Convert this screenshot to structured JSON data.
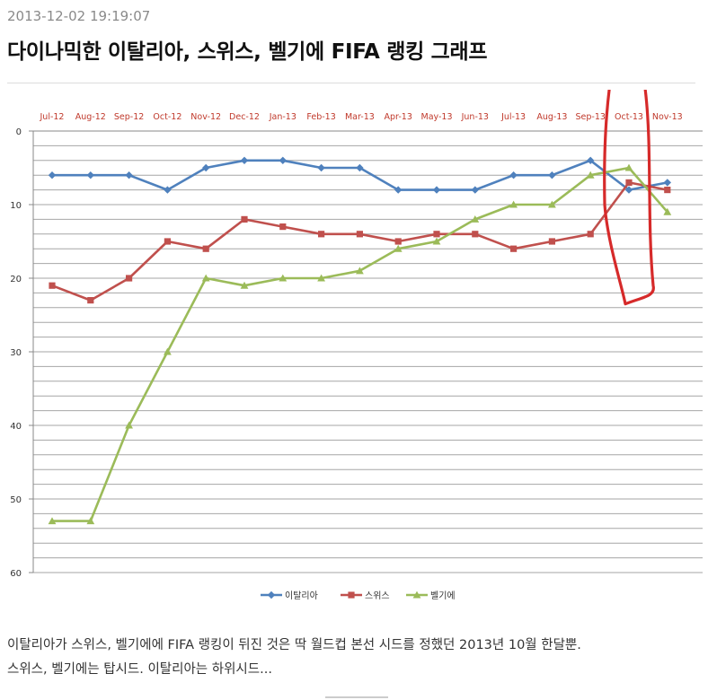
{
  "post": {
    "timestamp": "2013-12-02 19:19:07",
    "title": "다이나믹한 이탈리아, 스위스, 벨기에 FIFA 랭킹 그래프",
    "body_line1": "이탈리아가 스위스, 벨기에에 FIFA 랭킹이 뒤진 것은 딱 월드컵 본선 시드를 정했던 2013년 10월 한달뿐.",
    "body_line2": "스위스, 벨기에는 탑시드. 이탈리아는 하위시드..."
  },
  "colors": {
    "italy": "#4f81bd",
    "switzerland": "#c0504d",
    "belgium": "#9bbb59",
    "annotation": "#d62a2a",
    "axis_label": "#c0392b"
  },
  "chart_data": {
    "type": "line",
    "title": "",
    "xlabel": "",
    "ylabel": "",
    "categories": [
      "Jul-12",
      "Aug-12",
      "Sep-12",
      "Oct-12",
      "Nov-12",
      "Dec-12",
      "Jan-13",
      "Feb-13",
      "Mar-13",
      "Apr-13",
      "May-13",
      "Jun-13",
      "Jul-13",
      "Aug-13",
      "Sep-13",
      "Oct-13",
      "Nov-13"
    ],
    "ylim": [
      0,
      60
    ],
    "y_reversed": true,
    "y_ticks": [
      0,
      10,
      20,
      30,
      40,
      50,
      60
    ],
    "x_axis_position": "top",
    "grid": true,
    "legend_position": "bottom",
    "series": [
      {
        "name": "이탈리아",
        "marker": "diamond",
        "color": "#4f81bd",
        "values": [
          6,
          6,
          6,
          8,
          5,
          4,
          4,
          5,
          5,
          8,
          8,
          8,
          6,
          6,
          4,
          8,
          7
        ]
      },
      {
        "name": "스위스",
        "marker": "square",
        "color": "#c0504d",
        "values": [
          21,
          23,
          20,
          15,
          16,
          12,
          13,
          14,
          14,
          15,
          14,
          14,
          16,
          15,
          14,
          7,
          8
        ]
      },
      {
        "name": "벨기에",
        "marker": "triangle",
        "color": "#9bbb59",
        "values": [
          53,
          53,
          40,
          30,
          20,
          21,
          20,
          20,
          19,
          16,
          15,
          12,
          10,
          10,
          6,
          5,
          11
        ]
      }
    ],
    "annotation": {
      "type": "hand-drawn-loop",
      "color": "#d62a2a",
      "around_category": "Oct-13"
    }
  }
}
